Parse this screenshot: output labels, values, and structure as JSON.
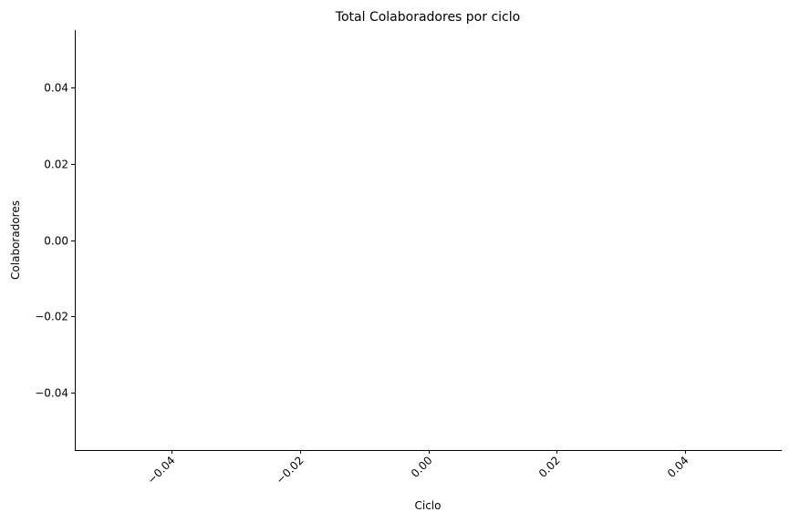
{
  "chart_data": {
    "type": "bar",
    "title": "Total Colaboradores por ciclo",
    "xlabel": "Ciclo",
    "ylabel": "Colaboradores",
    "categories": [],
    "values": [],
    "xlim": [
      -0.055,
      0.055
    ],
    "ylim": [
      -0.055,
      0.055
    ],
    "xticks": [
      -0.04,
      -0.02,
      0.0,
      0.02,
      0.04
    ],
    "xtick_labels": [
      "−0.04",
      "−0.02",
      "0.00",
      "0.02",
      "0.04"
    ],
    "yticks": [
      -0.04,
      -0.02,
      0.0,
      0.02,
      0.04
    ],
    "ytick_labels": [
      "−0.04",
      "−0.02",
      "0.00",
      "0.02",
      "0.04"
    ],
    "grid": false,
    "legend": "none",
    "spines": [
      "left",
      "bottom"
    ],
    "colors": {
      "axis": "#000000",
      "text": "#000000",
      "background": "#ffffff"
    }
  }
}
